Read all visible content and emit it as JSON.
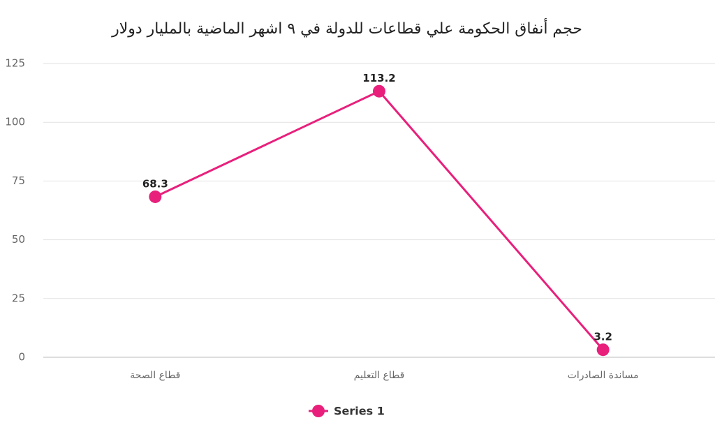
{
  "chart_data": {
    "type": "line",
    "title": "حجم أنفاق الحكومة علي قطاعات للدولة في ٩ اشهر الماضية بالمليار دولار",
    "categories": [
      "قطاع الصحة",
      "قطاع التعليم",
      "مساندة الصادرات"
    ],
    "series": [
      {
        "name": "Series 1",
        "color": "#e8207c",
        "values": [
          68.3,
          113.2,
          3.2
        ]
      }
    ],
    "ylim": [
      0,
      125
    ],
    "yticks": [
      0,
      25,
      50,
      75,
      100,
      125
    ],
    "grid": true,
    "legend": "bottom",
    "data_labels": true
  }
}
